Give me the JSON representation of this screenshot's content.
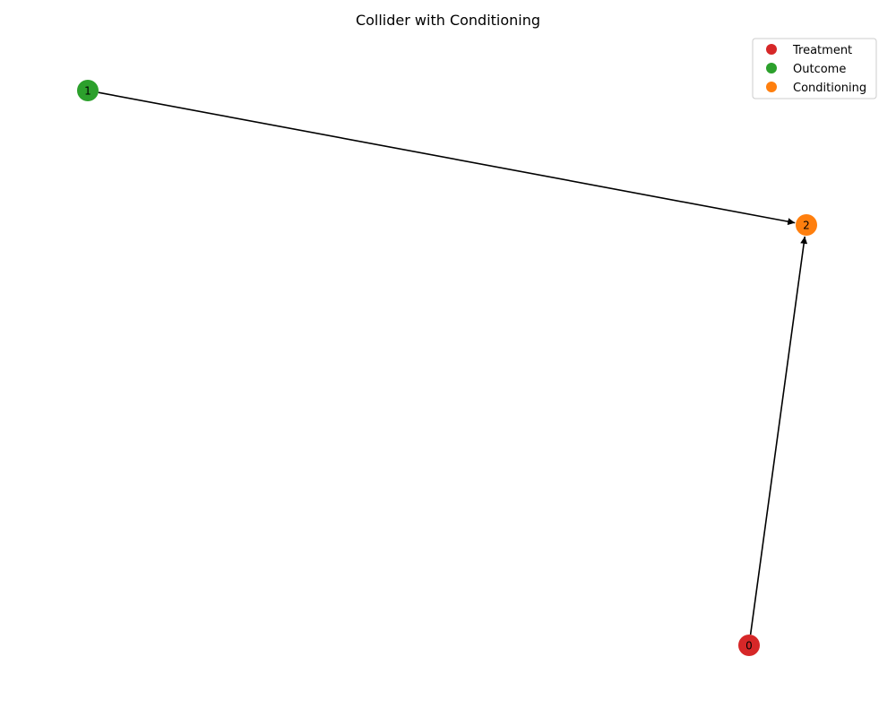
{
  "title": "Collider with Conditioning",
  "nodes": [
    {
      "id": "0",
      "label": "0",
      "role": "Treatment",
      "color": "#d62728"
    },
    {
      "id": "1",
      "label": "1",
      "role": "Outcome",
      "color": "#2ca02c"
    },
    {
      "id": "2",
      "label": "2",
      "role": "Conditioning",
      "color": "#ff7f0e"
    }
  ],
  "edges": [
    {
      "from": "1",
      "to": "2"
    },
    {
      "from": "0",
      "to": "2"
    }
  ],
  "legend": {
    "items": [
      {
        "label": "Treatment",
        "color": "#d62728"
      },
      {
        "label": "Outcome",
        "color": "#2ca02c"
      },
      {
        "label": "Conditioning",
        "color": "#ff7f0e"
      }
    ]
  }
}
